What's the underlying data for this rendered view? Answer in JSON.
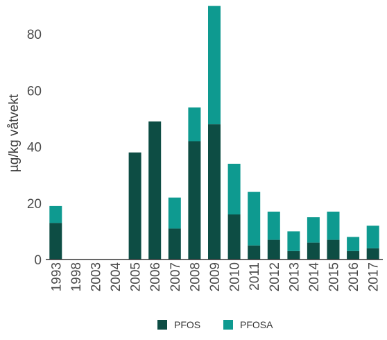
{
  "chart_data": {
    "type": "bar",
    "stacked": true,
    "categories": [
      "1993",
      "1998",
      "2003",
      "2004",
      "2005",
      "2006",
      "2007",
      "2008",
      "2009",
      "2010",
      "2011",
      "2012",
      "2013",
      "2014",
      "2015",
      "2016",
      "2017"
    ],
    "series": [
      {
        "name": "PFOS",
        "color": "#0d4d44",
        "values": [
          13,
          0,
          0,
          0,
          38,
          49,
          11,
          42,
          48,
          16,
          5,
          7,
          3,
          6,
          7,
          3,
          4
        ]
      },
      {
        "name": "PFOSA",
        "color": "#0e9a90",
        "values": [
          6,
          0,
          0,
          0,
          0,
          0,
          11,
          12,
          42,
          18,
          19,
          10,
          7,
          9,
          10,
          5,
          8
        ]
      }
    ],
    "title": "",
    "xlabel": "",
    "ylabel": "µg/kg våtvekt",
    "ylim": [
      0,
      90
    ],
    "yticks": [
      "0",
      "20",
      "40",
      "60",
      "80"
    ],
    "grid": false,
    "legend_position": "bottom"
  }
}
